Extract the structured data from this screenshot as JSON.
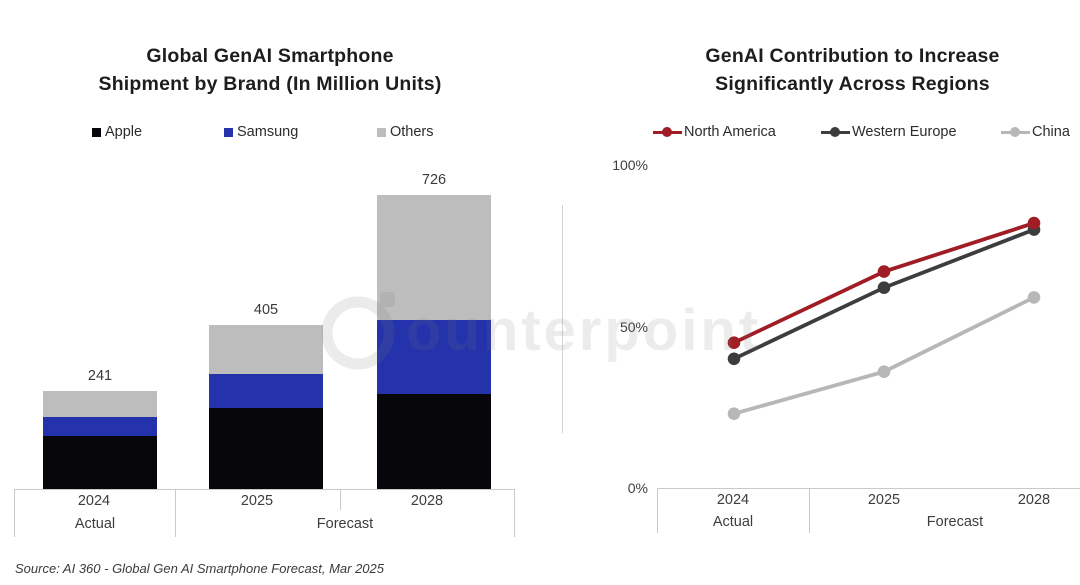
{
  "left_chart": {
    "title_lines": [
      "Global GenAI Smartphone",
      "Shipment by Brand (In Million Units)"
    ]
  },
  "right_chart": {
    "title_lines": [
      "GenAI Contribution to Increase",
      "Significantly Across Regions"
    ]
  },
  "chart_data": [
    {
      "type": "bar",
      "stacked": true,
      "title": "Global GenAI Smartphone Shipment by Brand (In Million Units)",
      "categories": [
        "2024",
        "2025",
        "2028"
      ],
      "x_group_labels": [
        "Actual",
        "Forecast"
      ],
      "series": [
        {
          "name": "Apple",
          "color": "#07070b",
          "values": [
            130,
            200,
            235
          ]
        },
        {
          "name": "Samsung",
          "color": "#2433ab",
          "values": [
            47,
            85,
            182
          ]
        },
        {
          "name": "Others",
          "color": "#bdbdbd",
          "values": [
            64,
            120,
            309
          ]
        }
      ],
      "totals": [
        241,
        405,
        726
      ],
      "legend_position": "top",
      "grid": false
    },
    {
      "type": "line",
      "title": "GenAI Contribution to Increase Significantly Across Regions",
      "categories": [
        "2024",
        "2025",
        "2028"
      ],
      "x_group_labels": [
        "Actual",
        "Forecast"
      ],
      "series": [
        {
          "name": "North America",
          "color": "#a01d25",
          "values": [
            45,
            67,
            82
          ]
        },
        {
          "name": "Western Europe",
          "color": "#3d3d3d",
          "values": [
            40,
            62,
            80
          ]
        },
        {
          "name": "China",
          "color": "#b7b7b7",
          "values": [
            23,
            36,
            59
          ]
        }
      ],
      "y_ticks": [
        "100%",
        "50%",
        "0%"
      ],
      "ylim": [
        0,
        100
      ],
      "legend_position": "top",
      "grid": false
    }
  ],
  "watermark": {
    "text": "ounterpoint"
  },
  "source": "Source: AI 360 - Global Gen AI Smartphone Forecast, Mar 2025"
}
